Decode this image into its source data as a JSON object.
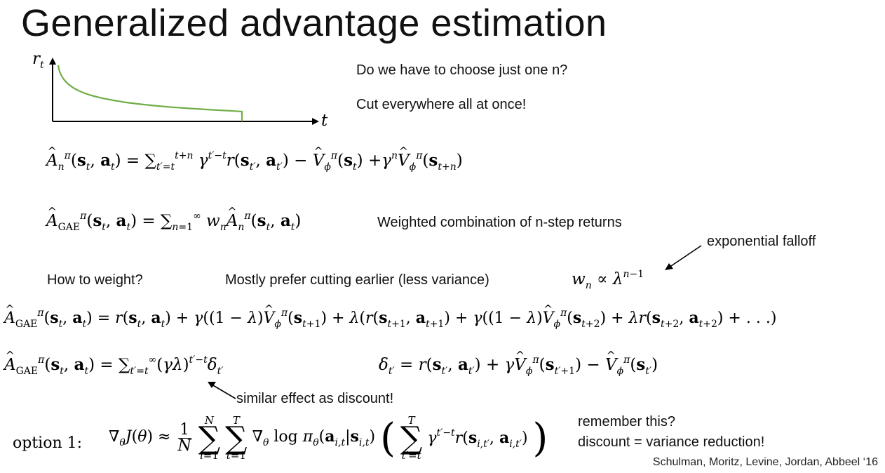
{
  "slide": {
    "title": "Generalized advantage estimation",
    "question": "Do we have to choose just one n?",
    "answer": "Cut everywhere all at once!",
    "weighted_label": "Weighted combination of n-step returns",
    "falloff_label": "exponential falloff",
    "how_weight": "How to weight?",
    "prefer_earlier": "Mostly prefer cutting earlier (less variance)",
    "discount_effect": "similar effect as discount!",
    "remember": "remember this?",
    "discount_reduction": "discount = variance reduction!",
    "option_label": "option 1:",
    "credit": "Schulman, Moritz, Levine, Jordan, Abbeel ‘16"
  },
  "graph": {
    "y_label": "r",
    "y_sub": "t",
    "x_label": "t",
    "curve_color": "#70ad47"
  }
}
